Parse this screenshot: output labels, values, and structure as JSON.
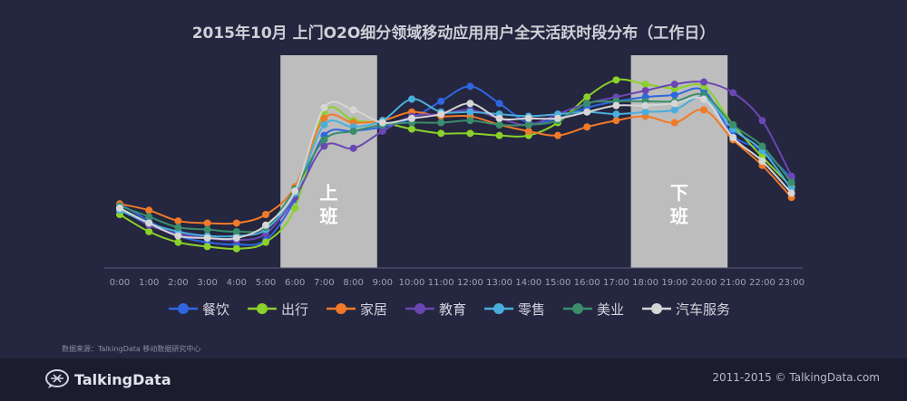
{
  "title": "2015年10月 上门O2O细分领域移动应用用户全天活跃时段分布（工作日）",
  "source": "数据来源：TalkingData 移动数据研究中心",
  "brand": "TalkingData",
  "copyright": "2011-2015 © TalkingData.com",
  "chart_data": {
    "type": "line",
    "x": [
      "0:00",
      "1:00",
      "2:00",
      "3:00",
      "4:00",
      "5:00",
      "6:00",
      "7:00",
      "8:00",
      "9:00",
      "10:00",
      "11:00",
      "12:00",
      "13:00",
      "14:00",
      "15:00",
      "16:00",
      "17:00",
      "18:00",
      "19:00",
      "20:00",
      "21:00",
      "22:00",
      "23:00"
    ],
    "ylim": [
      0,
      100
    ],
    "grid": false,
    "legend_position": "bottom",
    "series": [
      {
        "name": "餐饮",
        "color": "#2f66e0",
        "values": [
          30,
          22,
          15,
          12,
          11,
          13,
          32,
          62,
          64,
          66,
          70,
          78,
          85,
          77,
          68,
          70,
          75,
          78,
          80,
          81,
          83,
          62,
          55,
          42
        ]
      },
      {
        "name": "出行",
        "color": "#8ad12a",
        "values": [
          25,
          17,
          12,
          10,
          9,
          12,
          28,
          73,
          69,
          68,
          65,
          63,
          63,
          62,
          62,
          68,
          80,
          88,
          86,
          84,
          85,
          67,
          52,
          38
        ]
      },
      {
        "name": "家居",
        "color": "#f07a28",
        "values": [
          30,
          27,
          22,
          21,
          21,
          25,
          38,
          70,
          68,
          69,
          73,
          71,
          71,
          67,
          64,
          62,
          66,
          69,
          71,
          68,
          74,
          60,
          48,
          33
        ]
      },
      {
        "name": "教育",
        "color": "#6a47b2",
        "values": [
          28,
          20,
          16,
          14,
          13,
          16,
          33,
          57,
          56,
          64,
          71,
          72,
          74,
          70,
          67,
          72,
          77,
          80,
          83,
          86,
          87,
          82,
          69,
          43
        ]
      },
      {
        "name": "零售",
        "color": "#4aaedc",
        "values": [
          27,
          21,
          17,
          15,
          15,
          18,
          35,
          67,
          66,
          69,
          79,
          73,
          73,
          72,
          71,
          72,
          73,
          72,
          73,
          74,
          80,
          65,
          55,
          37
        ]
      },
      {
        "name": "美业",
        "color": "#3a8e6c",
        "values": [
          29,
          24,
          19,
          18,
          17,
          19,
          37,
          60,
          64,
          67,
          68,
          68,
          69,
          67,
          67,
          69,
          77,
          78,
          78,
          78,
          81,
          67,
          57,
          40
        ]
      },
      {
        "name": "汽车服务",
        "color": "#d6d6d6",
        "values": [
          28,
          21,
          15,
          14,
          14,
          20,
          36,
          75,
          74,
          68,
          70,
          72,
          77,
          70,
          70,
          70,
          73,
          76,
          76,
          77,
          79,
          61,
          50,
          35
        ]
      }
    ],
    "annotations": [
      {
        "label": "上班",
        "from": "6:00",
        "to": "9:00"
      },
      {
        "label": "下班",
        "from": "18:00",
        "to": "21:00"
      }
    ]
  }
}
